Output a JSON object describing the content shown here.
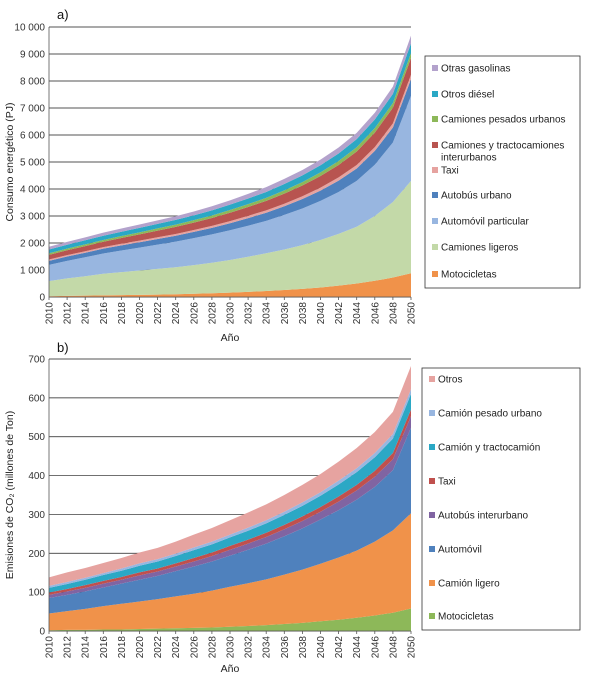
{
  "chart_data": [
    {
      "type": "area",
      "panel_label": "a)",
      "xlabel": "Año",
      "ylabel": "Consumo energético (PJ)",
      "x": [
        2010,
        2012,
        2014,
        2016,
        2018,
        2020,
        2022,
        2024,
        2026,
        2028,
        2030,
        2032,
        2034,
        2036,
        2038,
        2040,
        2042,
        2044,
        2046,
        2048,
        2050
      ],
      "ylim": [
        0,
        10000
      ],
      "yticks": [
        0,
        1000,
        2000,
        3000,
        4000,
        5000,
        6000,
        7000,
        8000,
        9000,
        10000
      ],
      "ytick_labels": [
        "0",
        "1 000",
        "2 000",
        "3 000",
        "4 000",
        "5 000",
        "6 000",
        "7 000",
        "8 000",
        "9 000",
        "10 000"
      ],
      "grid": true,
      "stacked": true,
      "legend_position": "right",
      "series": [
        {
          "name": "Motocicletas",
          "color": "#F0924A",
          "values": [
            30,
            40,
            50,
            60,
            70,
            80,
            90,
            100,
            120,
            140,
            160,
            190,
            220,
            260,
            300,
            350,
            420,
            500,
            600,
            720,
            880
          ]
        },
        {
          "name": "Camiones ligeros",
          "color": "#C3D9A8",
          "values": [
            560,
            650,
            720,
            800,
            850,
            900,
            950,
            1000,
            1060,
            1130,
            1210,
            1300,
            1400,
            1500,
            1620,
            1760,
            1920,
            2100,
            2400,
            2800,
            3420
          ]
        },
        {
          "name": "Automóvil particular",
          "color": "#98B6E0",
          "values": [
            600,
            650,
            700,
            750,
            800,
            850,
            900,
            950,
            1000,
            1050,
            1100,
            1150,
            1200,
            1280,
            1360,
            1450,
            1550,
            1700,
            1900,
            2200,
            3150
          ]
        },
        {
          "name": "Autobús urbano",
          "color": "#4F81BD",
          "values": [
            150,
            160,
            170,
            180,
            190,
            200,
            210,
            220,
            230,
            240,
            260,
            280,
            300,
            320,
            350,
            380,
            420,
            460,
            510,
            560,
            620
          ]
        },
        {
          "name": "Taxi",
          "color": "#E6A3A0",
          "values": [
            50,
            50,
            55,
            55,
            60,
            60,
            65,
            65,
            70,
            75,
            80,
            85,
            90,
            95,
            100,
            110,
            120,
            130,
            140,
            150,
            160
          ]
        },
        {
          "name": "Camiones y tractocamiones interurbanos",
          "color": "#B85450",
          "values": [
            170,
            180,
            190,
            200,
            215,
            230,
            245,
            260,
            275,
            290,
            310,
            330,
            350,
            375,
            400,
            430,
            460,
            500,
            540,
            580,
            620
          ]
        },
        {
          "name": "Camiones pesados urbanos",
          "color": "#8DB859",
          "values": [
            60,
            62,
            65,
            68,
            72,
            75,
            80,
            85,
            90,
            95,
            100,
            105,
            110,
            118,
            125,
            135,
            145,
            155,
            165,
            175,
            185
          ]
        },
        {
          "name": "Otros diésel",
          "color": "#2BA8C5",
          "values": [
            140,
            145,
            150,
            155,
            160,
            165,
            170,
            175,
            180,
            190,
            200,
            210,
            220,
            235,
            250,
            265,
            280,
            300,
            320,
            340,
            360
          ]
        },
        {
          "name": "Otras gasolinas",
          "color": "#B3A2CC",
          "values": [
            100,
            105,
            110,
            115,
            120,
            125,
            130,
            135,
            140,
            150,
            160,
            170,
            180,
            190,
            200,
            210,
            220,
            235,
            250,
            265,
            285
          ]
        }
      ]
    },
    {
      "type": "area",
      "panel_label": "b)",
      "xlabel": "Año",
      "ylabel": "Emisiones de CO₂ (millones de Ton)",
      "x": [
        2010,
        2012,
        2014,
        2016,
        2018,
        2020,
        2022,
        2024,
        2026,
        2028,
        2030,
        2032,
        2034,
        2036,
        2038,
        2040,
        2042,
        2044,
        2046,
        2048,
        2050
      ],
      "ylim": [
        0,
        700
      ],
      "yticks": [
        0,
        100,
        200,
        300,
        400,
        500,
        600,
        700
      ],
      "ytick_labels": [
        "0",
        "100",
        "200",
        "300",
        "400",
        "500",
        "600",
        "700"
      ],
      "grid": true,
      "stacked": true,
      "legend_position": "right",
      "series": [
        {
          "name": "Motocicletas",
          "color": "#8DB859",
          "values": [
            2,
            3,
            3,
            4,
            4,
            5,
            6,
            7,
            8,
            9,
            11,
            13,
            15,
            18,
            21,
            25,
            29,
            34,
            40,
            47,
            58
          ]
        },
        {
          "name": "Camión ligero",
          "color": "#F0924A",
          "values": [
            43,
            48,
            54,
            60,
            66,
            71,
            76,
            82,
            88,
            95,
            103,
            110,
            118,
            127,
            137,
            148,
            160,
            173,
            190,
            212,
            245
          ]
        },
        {
          "name": "Automóvil",
          "color": "#4F81BD",
          "values": [
            40,
            42,
            45,
            48,
            52,
            56,
            60,
            65,
            70,
            75,
            80,
            86,
            92,
            99,
            106,
            114,
            122,
            131,
            141,
            155,
            220
          ]
        },
        {
          "name": "Autobús interurbano",
          "color": "#8064A2",
          "values": [
            8,
            9,
            9,
            10,
            10,
            11,
            11,
            12,
            13,
            14,
            15,
            16,
            17,
            18,
            19,
            20,
            22,
            24,
            26,
            28,
            30
          ]
        },
        {
          "name": "Taxi",
          "color": "#C0504D",
          "values": [
            6,
            6,
            7,
            7,
            7,
            8,
            8,
            8,
            9,
            9,
            10,
            10,
            11,
            11,
            12,
            12,
            13,
            14,
            15,
            16,
            17
          ]
        },
        {
          "name": "Camión y tractocamión",
          "color": "#2BA8C5",
          "values": [
            12,
            13,
            14,
            15,
            16,
            17,
            18,
            19,
            20,
            21,
            22,
            23,
            24,
            26,
            27,
            29,
            31,
            33,
            35,
            37,
            40
          ]
        },
        {
          "name": "Camión pesado urbano",
          "color": "#98B6E0",
          "values": [
            5,
            5,
            5,
            5,
            6,
            6,
            6,
            6,
            7,
            7,
            7,
            8,
            8,
            8,
            9,
            9,
            10,
            10,
            11,
            12,
            12
          ]
        },
        {
          "name": "Otros",
          "color": "#E6A3A0",
          "values": [
            22,
            25,
            25,
            26,
            27,
            28,
            29,
            31,
            33,
            35,
            37,
            39,
            41,
            43,
            45,
            47,
            49,
            52,
            54,
            57,
            60
          ]
        }
      ]
    }
  ]
}
